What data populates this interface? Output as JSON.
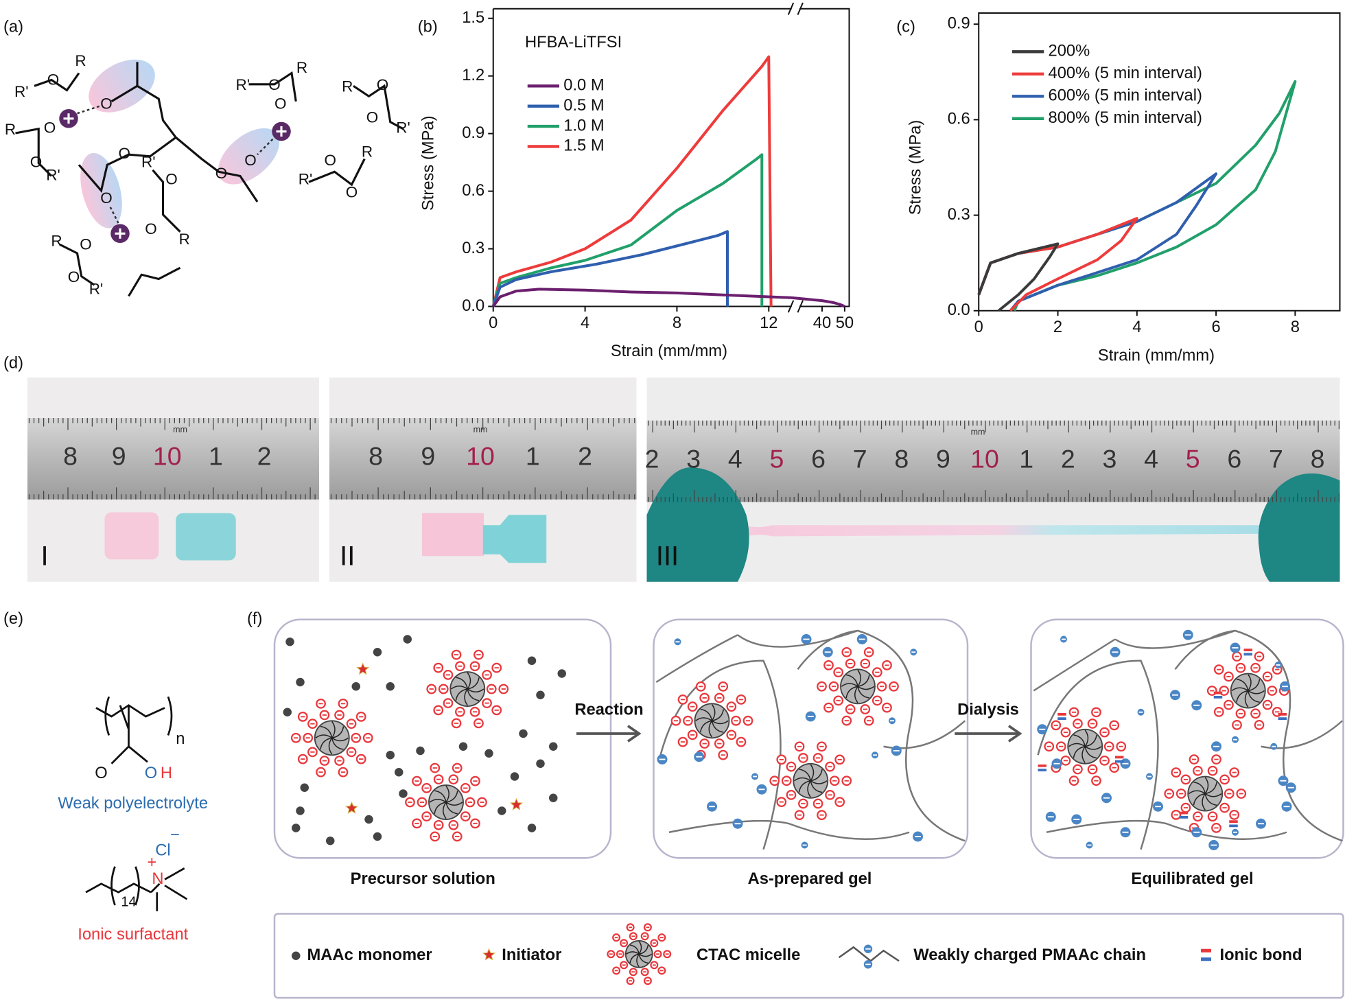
{
  "panel_labels": [
    "(a)",
    "(b)",
    "(c)",
    "(d)",
    "(e)",
    "(f)"
  ],
  "chart_data": [
    {
      "type": "line",
      "xlabel": "Strain (mm/mm)",
      "ylabel": "Stress (MPa)",
      "legend_title": "HFBA-LiTFSI",
      "xlim": [
        0,
        52
      ],
      "axis_break": [
        13,
        30
      ],
      "ylim": [
        0,
        1.55
      ],
      "xticks": [
        0,
        4,
        8,
        12,
        40,
        50
      ],
      "yticks": [
        {
          "value": 0,
          "label": "0.0"
        },
        0.3,
        0.6,
        0.9,
        1.2,
        1.5
      ],
      "series": [
        {
          "name": "0.0 M",
          "color": "#6b1f6e",
          "x": [
            0,
            0.3,
            1,
            2,
            4,
            6,
            8,
            10,
            12,
            13,
            40,
            45,
            48,
            50
          ],
          "values": [
            0,
            0.05,
            0.08,
            0.09,
            0.085,
            0.075,
            0.07,
            0.06,
            0.05,
            0.045,
            0.03,
            0.02,
            0.01,
            0
          ]
        },
        {
          "name": "0.5 M",
          "color": "#2f5fae",
          "x": [
            0,
            0.3,
            1,
            2.5,
            4.5,
            6.5,
            8.5,
            9.8,
            10.2,
            10.2
          ],
          "values": [
            0,
            0.1,
            0.14,
            0.18,
            0.22,
            0.27,
            0.33,
            0.37,
            0.39,
            0
          ]
        },
        {
          "name": "1.0 M",
          "color": "#22a06b",
          "x": [
            0,
            0.3,
            1,
            2.5,
            4,
            6,
            8,
            10,
            11.5,
            11.7,
            11.7
          ],
          "values": [
            0,
            0.12,
            0.15,
            0.2,
            0.24,
            0.32,
            0.5,
            0.64,
            0.77,
            0.79,
            0
          ]
        },
        {
          "name": "1.5 M",
          "color": "#ee3b3b",
          "x": [
            0,
            0.3,
            1,
            2.5,
            4,
            6,
            8,
            10,
            11.7,
            12,
            12.1
          ],
          "values": [
            0,
            0.15,
            0.18,
            0.23,
            0.3,
            0.45,
            0.72,
            1.02,
            1.25,
            1.3,
            0
          ]
        }
      ]
    },
    {
      "type": "line",
      "xlabel": "Strain (mm/mm)",
      "ylabel": "Stress (MPa)",
      "xlim": [
        0,
        9.13
      ],
      "ylim": [
        0,
        0.935
      ],
      "xticks": [
        0,
        2,
        4,
        6,
        8
      ],
      "yticks": [
        {
          "value": 0,
          "label": "0.0"
        },
        0.3,
        0.6,
        0.9
      ],
      "series": [
        {
          "name": "200%",
          "color": "#3a3a3a",
          "x": [
            0,
            0.3,
            1,
            2,
            1.8,
            1.4,
            1,
            0.5
          ],
          "values": [
            0.05,
            0.15,
            0.18,
            0.21,
            0.17,
            0.1,
            0.05,
            0
          ]
        },
        {
          "name": "400% (5 min interval)",
          "color": "#ee3b3b",
          "x": [
            0,
            0.3,
            1,
            2,
            3,
            4,
            3.6,
            3,
            2,
            1.2,
            0.8
          ],
          "values": [
            0.05,
            0.15,
            0.18,
            0.2,
            0.24,
            0.29,
            0.22,
            0.16,
            0.1,
            0.05,
            0
          ]
        },
        {
          "name": "600% (5 min interval)",
          "color": "#2f5fae",
          "x": [
            0,
            0.3,
            1,
            2,
            4,
            5,
            6,
            5.5,
            5,
            4,
            3,
            2,
            1,
            0.8
          ],
          "values": [
            0.05,
            0.15,
            0.18,
            0.2,
            0.28,
            0.34,
            0.43,
            0.33,
            0.24,
            0.16,
            0.12,
            0.08,
            0.03,
            0
          ]
        },
        {
          "name": "800% (5 min interval)",
          "color": "#22a06b",
          "x": [
            0,
            0.3,
            1,
            2,
            4,
            6,
            7,
            7.6,
            8,
            7.5,
            7,
            6,
            5,
            4,
            3,
            2,
            1,
            0.9
          ],
          "values": [
            0.05,
            0.15,
            0.18,
            0.2,
            0.28,
            0.4,
            0.52,
            0.62,
            0.72,
            0.5,
            0.38,
            0.27,
            0.2,
            0.15,
            0.11,
            0.08,
            0.03,
            0
          ]
        }
      ]
    }
  ],
  "panel_a": {
    "atoms": [
      "R'",
      "O",
      "R",
      "O",
      "R",
      "O",
      "O",
      "R'",
      "O",
      "O",
      "O",
      "O",
      "R'",
      "O",
      "R",
      "O",
      "R",
      "O",
      "O",
      "R'",
      "R'",
      "O",
      "O",
      "R",
      "R",
      "O",
      "O",
      "R'",
      "R'",
      "O",
      "O",
      "R"
    ]
  },
  "panel_d": {
    "photos": [
      {
        "label": "I",
        "unit": "mm",
        "ruler": [
          "8",
          "9",
          "10",
          "1",
          "2"
        ]
      },
      {
        "label": "II",
        "unit": "mm",
        "ruler": [
          "8",
          "9",
          "10",
          "1",
          "2"
        ]
      },
      {
        "label": "III",
        "unit": "mm",
        "ruler": [
          "2",
          "3",
          "4",
          "5",
          "6",
          "7",
          "8",
          "9",
          "10",
          "1",
          "2",
          "3",
          "4",
          "5",
          "6",
          "7",
          "8"
        ]
      }
    ]
  },
  "panel_e": {
    "n": "n",
    "carbonyl_o": "O",
    "hydroxyl_o": "O",
    "hydroxyl_h": "H",
    "polymer_name": "Weak polyelectrolyte",
    "chloride": "Cl",
    "minus": "−",
    "plus": "+",
    "nitrogen": "N",
    "repeat": "14",
    "surfactant_name": "Ionic surfactant"
  },
  "panel_f": {
    "arrows": [
      "Reaction",
      "Dialysis"
    ],
    "stages": [
      "Precursor solution",
      "As-prepared gel",
      "Equilibrated gel"
    ],
    "legend": [
      "MAAc monomer",
      "Initiator",
      "CTAC micelle",
      "Weakly charged PMAAc chain",
      "Ionic bond"
    ]
  }
}
